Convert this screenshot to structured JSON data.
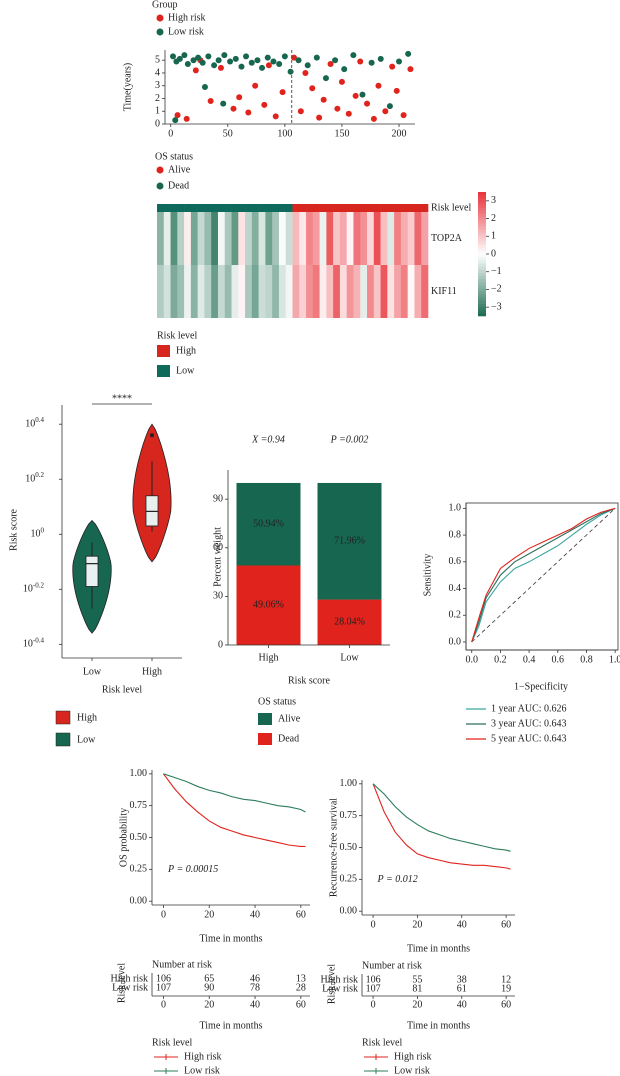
{
  "chart_data": [
    {
      "type": "scatter",
      "legend_title": "Group",
      "ylabel": "Time(years)",
      "xlim": [
        -5,
        214
      ],
      "ylim": [
        0,
        5.8
      ],
      "xticks": [
        0,
        50,
        100,
        150,
        200
      ],
      "yticks": [
        0,
        1,
        2,
        3,
        4,
        5
      ],
      "cutoff": 106,
      "series": [
        {
          "name": "High risk",
          "color": "#e0231c",
          "x": [
            6,
            14,
            22,
            35,
            44,
            55,
            60,
            68,
            74,
            82,
            92,
            98,
            108,
            114,
            118,
            124,
            130,
            134,
            140,
            146,
            150,
            156,
            162,
            166,
            172,
            178,
            182,
            188,
            194,
            198,
            204,
            210,
            26,
            86
          ],
          "values": [
            0.7,
            0.4,
            4.2,
            1.8,
            4.4,
            1.2,
            2.1,
            0.9,
            3.0,
            1.5,
            0.6,
            2.5,
            5.2,
            1.0,
            4.0,
            2.8,
            0.5,
            1.9,
            4.7,
            1.2,
            3.3,
            0.8,
            2.2,
            4.9,
            1.6,
            0.4,
            3.0,
            1.0,
            4.5,
            2.6,
            0.7,
            4.3,
            5.0,
            4.6
          ]
        },
        {
          "name": "Low risk",
          "color": "#17664f",
          "x": [
            2,
            5,
            8,
            12,
            15,
            20,
            24,
            28,
            33,
            38,
            42,
            47,
            52,
            57,
            62,
            66,
            71,
            76,
            80,
            85,
            90,
            95,
            100,
            105,
            112,
            120,
            128,
            136,
            144,
            152,
            160,
            168,
            176,
            184,
            192,
            200,
            208,
            30,
            46,
            4
          ],
          "values": [
            5.3,
            4.9,
            5.1,
            5.4,
            4.7,
            5.0,
            5.2,
            4.8,
            5.3,
            4.6,
            5.0,
            5.4,
            4.9,
            5.1,
            4.5,
            5.3,
            4.8,
            5.0,
            4.4,
            5.2,
            4.9,
            4.7,
            5.3,
            4.1,
            5.0,
            4.6,
            5.2,
            3.6,
            5.0,
            4.3,
            5.4,
            2.3,
            4.8,
            5.1,
            1.4,
            4.9,
            5.5,
            2.9,
            1.6,
            0.3
          ]
        }
      ]
    },
    {
      "type": "heatmap",
      "status_legend": {
        "title": "OS status",
        "items": [
          {
            "name": "Alive",
            "color": "#e0231c"
          },
          {
            "name": "Dead",
            "color": "#17664f"
          }
        ]
      },
      "rows": [
        "Risk level",
        "TOP2A",
        "KIF11"
      ],
      "column_risk": [
        "Low",
        "Low",
        "Low",
        "Low",
        "Low",
        "Low",
        "Low",
        "Low",
        "Low",
        "Low",
        "Low",
        "Low",
        "Low",
        "Low",
        "Low",
        "Low",
        "Low",
        "Low",
        "Low",
        "Low",
        "High",
        "High",
        "High",
        "High",
        "High",
        "High",
        "High",
        "High",
        "High",
        "High",
        "High",
        "High",
        "High",
        "High",
        "High",
        "High",
        "High",
        "High",
        "High",
        "High"
      ],
      "values": [
        [
          -1.8,
          -0.4,
          -2.6,
          -1.1,
          0.3,
          -2.1,
          -0.9,
          -1.6,
          -2.9,
          -0.2,
          -1.3,
          -2.4,
          0.5,
          -1.0,
          -1.9,
          -0.6,
          -2.2,
          -1.4,
          -0.1,
          -0.8,
          1.2,
          0.4,
          2.1,
          1.7,
          -0.3,
          2.8,
          1.0,
          1.5,
          0.2,
          2.4,
          1.9,
          0.7,
          3.0,
          1.1,
          -0.5,
          2.2,
          1.4,
          0.9,
          2.6,
          1.6
        ],
        [
          -1.2,
          -0.7,
          -2.0,
          -1.5,
          -0.3,
          -1.8,
          -0.5,
          -1.1,
          -2.3,
          -0.9,
          -1.6,
          -0.4,
          0.2,
          -1.3,
          -2.1,
          -0.8,
          -1.0,
          -1.7,
          -0.6,
          -0.2,
          1.5,
          0.8,
          1.9,
          2.3,
          0.3,
          1.1,
          2.7,
          0.6,
          1.8,
          1.3,
          -0.4,
          2.0,
          1.0,
          2.9,
          0.5,
          1.6,
          2.2,
          0.1,
          1.4,
          2.5
        ]
      ],
      "colorbar_lim": [
        -3.5,
        3.5
      ],
      "colorbar_ticks": [
        3,
        2,
        1,
        0,
        {
          "value": -1,
          "label": "−1"
        },
        {
          "value": -2,
          "label": "−2"
        },
        {
          "value": -3,
          "label": "−3"
        }
      ],
      "risk_legend": {
        "title": "Risk level",
        "items": [
          {
            "name": "High",
            "color": "#d7261e"
          },
          {
            "name": "Low",
            "color": "#0e6b5c"
          }
        ]
      }
    },
    {
      "type": "violin",
      "ylabel": "Risk score",
      "xlabel": "Risk level",
      "annotation": "****",
      "log_scale": true,
      "ylim": [
        0.355,
        2.95
      ],
      "yticks": [
        {
          "value": 2.512,
          "label": "10",
          "power": "0.4"
        },
        {
          "value": 1.585,
          "label": "10",
          "power": "0.2"
        },
        {
          "value": 1,
          "label": "10",
          "power": "0"
        },
        {
          "value": 0.631,
          "label": "10",
          "power": "-0.2"
        },
        {
          "value": 0.398,
          "label": "10",
          "power": "-0.4"
        }
      ],
      "categories": [
        "Low",
        "High"
      ],
      "groups": [
        {
          "color": "#17664f",
          "min": 0.437,
          "whisker_low": 0.537,
          "q1": 0.646,
          "median": 0.782,
          "q3": 0.832,
          "whisker_high": 0.933,
          "max": 1.122
        },
        {
          "color": "#d7261e",
          "min": 0.794,
          "whisker_low": 1.023,
          "q1": 1.072,
          "median": 1.211,
          "q3": 1.38,
          "whisker_high": 1.841,
          "max": 2.512,
          "outlier": 2.291
        }
      ],
      "legend": [
        {
          "name": "High",
          "color": "#d7261e"
        },
        {
          "name": "Low",
          "color": "#17664f"
        }
      ]
    },
    {
      "type": "bar",
      "stacked": true,
      "ylabel": "Percent weight",
      "xlabel": "Risk score",
      "annotations": [
        "X =0.94",
        "P =0.002"
      ],
      "ylim": [
        0,
        108
      ],
      "yticks": [
        0,
        30,
        60,
        90
      ],
      "categories": [
        "High",
        "Low"
      ],
      "legend_title": "OS status",
      "series": [
        {
          "name": "Alive",
          "color": "#17664f",
          "values": [
            50.94,
            71.96
          ],
          "value_labels": [
            "50.94%",
            "71.96%"
          ]
        },
        {
          "name": "Dead",
          "color": "#e0231c",
          "values": [
            49.06,
            28.04
          ],
          "value_labels": [
            "49.06%",
            "28.04%"
          ]
        }
      ]
    },
    {
      "type": "line",
      "ylabel": "Sensitivity",
      "xlabel": "1−Specificity",
      "xlim": [
        -0.04,
        1.02
      ],
      "ylim": [
        -0.06,
        1.04
      ],
      "xticks": [
        {
          "value": 0,
          "label": "0.0"
        },
        {
          "value": 0.2,
          "label": "0.2"
        },
        {
          "value": 0.4,
          "label": "0.4"
        },
        {
          "value": 0.6,
          "label": "0.6"
        },
        {
          "value": 0.8,
          "label": "0.8"
        },
        {
          "value": 1,
          "label": "1.0"
        }
      ],
      "yticks": [
        {
          "value": 0,
          "label": "0.0"
        },
        {
          "value": 0.2,
          "label": "0.2"
        },
        {
          "value": 0.4,
          "label": "0.4"
        },
        {
          "value": 0.6,
          "label": "0.6"
        },
        {
          "value": 0.8,
          "label": "0.8"
        },
        {
          "value": 1,
          "label": "1.0"
        }
      ],
      "x": [
        0,
        0.05,
        0.1,
        0.2,
        0.3,
        0.4,
        0.5,
        0.6,
        0.7,
        0.8,
        0.9,
        1
      ],
      "series": [
        {
          "name": "1 year AUC: 0.626",
          "color": "#3aa6a0",
          "values": [
            0,
            0.12,
            0.3,
            0.45,
            0.55,
            0.6,
            0.66,
            0.72,
            0.8,
            0.88,
            0.95,
            1
          ]
        },
        {
          "name": "3 year AUC: 0.643",
          "color": "#2e6e5e",
          "values": [
            0,
            0.15,
            0.33,
            0.5,
            0.6,
            0.66,
            0.72,
            0.78,
            0.84,
            0.9,
            0.96,
            1
          ]
        },
        {
          "name": "5 year AUC: 0.643",
          "color": "#e0231c",
          "values": [
            0,
            0.18,
            0.35,
            0.55,
            0.63,
            0.7,
            0.75,
            0.8,
            0.85,
            0.92,
            0.97,
            1
          ]
        }
      ]
    },
    {
      "type": "line",
      "ylabel": "OS probability",
      "xlabel": "Time in months",
      "annotation": "P = 0.00015",
      "xlim": [
        -5,
        64
      ],
      "ylim": [
        -0.03,
        1.03
      ],
      "xticks": [
        0,
        20,
        40,
        60
      ],
      "yticks": [
        {
          "value": 0,
          "label": "0.00"
        },
        {
          "value": 0.25,
          "label": "0.25"
        },
        {
          "value": 0.5,
          "label": "0.50"
        },
        {
          "value": 0.75,
          "label": "0.75"
        },
        {
          "value": 1,
          "label": "1.00"
        }
      ],
      "x": [
        0,
        5,
        10,
        15,
        20,
        25,
        30,
        35,
        40,
        45,
        50,
        55,
        60,
        62
      ],
      "series": [
        {
          "name": "High risk",
          "color": "#e0231c",
          "values": [
            1,
            0.88,
            0.78,
            0.7,
            0.63,
            0.58,
            0.55,
            0.52,
            0.5,
            0.48,
            0.46,
            0.44,
            0.43,
            0.43
          ]
        },
        {
          "name": "Low risk",
          "color": "#2e7d5b",
          "values": [
            1,
            0.97,
            0.94,
            0.9,
            0.87,
            0.85,
            0.82,
            0.8,
            0.79,
            0.77,
            0.75,
            0.74,
            0.72,
            0.7
          ]
        }
      ],
      "risk_table": {
        "title": "Number at risk",
        "row_label": "Risk level",
        "xlabel": "Time in months",
        "times": [
          0,
          20,
          40,
          60
        ],
        "rows": [
          {
            "name": "High risk",
            "counts": [
              106,
              65,
              46,
              13
            ]
          },
          {
            "name": "Low risk",
            "counts": [
              107,
              90,
              78,
              28
            ]
          }
        ]
      },
      "legend_title": "Risk level"
    },
    {
      "type": "line",
      "ylabel": "Recurrence-free survival",
      "xlabel": "Time in months",
      "annotation": "P = 0.012",
      "xlim": [
        -5,
        64
      ],
      "ylim": [
        -0.03,
        1.03
      ],
      "xticks": [
        0,
        20,
        40,
        60
      ],
      "yticks": [
        {
          "value": 0,
          "label": "0.00"
        },
        {
          "value": 0.25,
          "label": "0.25"
        },
        {
          "value": 0.5,
          "label": "0.50"
        },
        {
          "value": 0.75,
          "label": "0.75"
        },
        {
          "value": 1,
          "label": "1.00"
        }
      ],
      "x": [
        0,
        5,
        10,
        15,
        20,
        25,
        30,
        35,
        40,
        45,
        50,
        55,
        60,
        62
      ],
      "series": [
        {
          "name": "High risk",
          "color": "#e0231c",
          "values": [
            1,
            0.78,
            0.62,
            0.52,
            0.45,
            0.42,
            0.4,
            0.38,
            0.37,
            0.36,
            0.36,
            0.35,
            0.34,
            0.33
          ]
        },
        {
          "name": "Low risk",
          "color": "#2e7d5b",
          "values": [
            1,
            0.92,
            0.82,
            0.74,
            0.68,
            0.63,
            0.6,
            0.57,
            0.55,
            0.53,
            0.51,
            0.49,
            0.48,
            0.47
          ]
        }
      ],
      "risk_table": {
        "title": "Number at risk",
        "row_label": "Risk level",
        "xlabel": "Time in months",
        "times": [
          0,
          20,
          40,
          60
        ],
        "rows": [
          {
            "name": "High risk",
            "counts": [
              106,
              55,
              38,
              12
            ]
          },
          {
            "name": "Low risk",
            "counts": [
              107,
              81,
              61,
              19
            ]
          }
        ]
      },
      "legend_title": "Risk level"
    }
  ]
}
